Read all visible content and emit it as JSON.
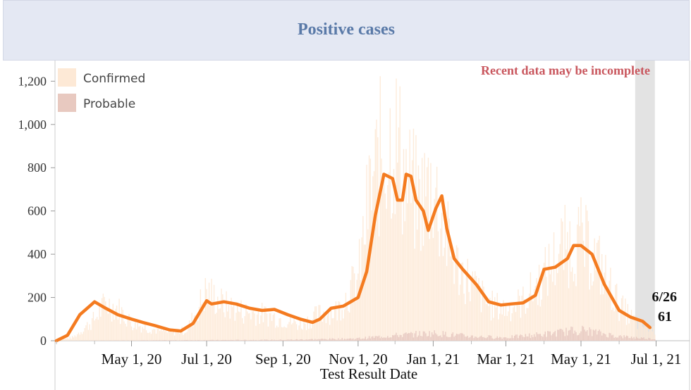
{
  "chart_data": {
    "type": "bar",
    "title": "Positive cases",
    "xlabel": "Test Result Date",
    "ylabel": "",
    "ylim": [
      0,
      1250
    ],
    "y_ticks": [
      "1,200",
      "1,000",
      "800",
      "600",
      "400",
      "200",
      "0"
    ],
    "y_tick_values": [
      1200,
      1000,
      800,
      600,
      400,
      200,
      0
    ],
    "x_tick_labels": [
      "May 1, 20",
      "Jul 1, 20",
      "Sep 1, 20",
      "Nov 1, 20",
      "Jan 1, 21",
      "Mar 1, 21",
      "May 1, 21",
      "Jul 1, 21"
    ],
    "x_tick_dates": [
      "2020-05-01",
      "2020-07-01",
      "2020-09-01",
      "2020-11-01",
      "2021-01-01",
      "2021-03-01",
      "2021-05-01",
      "2021-07-01"
    ],
    "x_range": [
      "2020-03-01",
      "2021-07-03"
    ],
    "legend": {
      "placement": "top-left",
      "entries": [
        "Confirmed",
        "Probable"
      ]
    },
    "note": "Recent data may be incomplete",
    "incomplete_from": "2021-06-14",
    "incomplete_to": "2021-06-30",
    "callout": {
      "date_label": "6/26",
      "value_label": "61"
    },
    "colors": {
      "confirmed": "#fde9d6",
      "probable": "#e8c9c0",
      "average": "#f47b20",
      "incomplete_band": "#e3e3e3"
    },
    "series": [
      {
        "name": "Confirmed",
        "kind": "bar",
        "x": [
          "2020-03-01",
          "2020-03-15",
          "2020-04-01",
          "2020-04-10",
          "2020-04-20",
          "2020-05-01",
          "2020-05-15",
          "2020-06-01",
          "2020-06-15",
          "2020-07-01",
          "2020-07-15",
          "2020-08-01",
          "2020-08-15",
          "2020-09-01",
          "2020-09-15",
          "2020-10-01",
          "2020-10-15",
          "2020-11-01",
          "2020-11-10",
          "2020-11-20",
          "2020-12-01",
          "2020-12-10",
          "2020-12-20",
          "2021-01-01",
          "2021-01-10",
          "2021-01-20",
          "2021-02-01",
          "2021-02-15",
          "2021-03-01",
          "2021-03-15",
          "2021-04-01",
          "2021-04-15",
          "2021-05-01",
          "2021-05-15",
          "2021-06-01",
          "2021-06-15",
          "2021-06-30"
        ],
        "values": [
          0,
          20,
          120,
          210,
          180,
          100,
          70,
          45,
          60,
          280,
          200,
          160,
          150,
          120,
          90,
          150,
          170,
          350,
          800,
          1050,
          1150,
          900,
          780,
          880,
          600,
          420,
          320,
          200,
          180,
          220,
          360,
          520,
          560,
          440,
          200,
          100,
          60
        ]
      },
      {
        "name": "Probable",
        "kind": "bar",
        "x": [
          "2020-03-01",
          "2020-06-01",
          "2020-09-01",
          "2020-11-01",
          "2020-12-01",
          "2021-01-01",
          "2021-02-01",
          "2021-03-01",
          "2021-04-01",
          "2021-05-01",
          "2021-06-01",
          "2021-06-30"
        ],
        "values": [
          0,
          2,
          4,
          10,
          25,
          35,
          20,
          15,
          30,
          50,
          20,
          8
        ]
      },
      {
        "name": "",
        "kind": "line",
        "x": [
          "2020-03-01",
          "2020-03-10",
          "2020-03-20",
          "2020-04-01",
          "2020-04-10",
          "2020-04-20",
          "2020-05-01",
          "2020-05-10",
          "2020-05-20",
          "2020-06-01",
          "2020-06-10",
          "2020-06-20",
          "2020-07-01",
          "2020-07-05",
          "2020-07-15",
          "2020-07-25",
          "2020-08-05",
          "2020-08-15",
          "2020-08-25",
          "2020-09-05",
          "2020-09-15",
          "2020-09-25",
          "2020-10-01",
          "2020-10-10",
          "2020-10-20",
          "2020-11-01",
          "2020-11-08",
          "2020-11-15",
          "2020-11-22",
          "2020-11-29",
          "2020-12-03",
          "2020-12-07",
          "2020-12-10",
          "2020-12-14",
          "2020-12-18",
          "2020-12-24",
          "2020-12-28",
          "2021-01-03",
          "2021-01-08",
          "2021-01-12",
          "2021-01-18",
          "2021-01-25",
          "2021-02-05",
          "2021-02-15",
          "2021-02-25",
          "2021-03-05",
          "2021-03-15",
          "2021-03-25",
          "2021-04-01",
          "2021-04-10",
          "2021-04-20",
          "2021-04-25",
          "2021-05-01",
          "2021-05-10",
          "2021-05-20",
          "2021-06-01",
          "2021-06-10",
          "2021-06-20",
          "2021-06-26"
        ],
        "values": [
          0,
          25,
          120,
          180,
          150,
          120,
          100,
          85,
          70,
          50,
          45,
          80,
          185,
          170,
          180,
          170,
          150,
          140,
          145,
          120,
          100,
          85,
          100,
          150,
          160,
          200,
          320,
          580,
          770,
          750,
          650,
          650,
          770,
          760,
          650,
          600,
          510,
          610,
          670,
          520,
          380,
          330,
          260,
          180,
          165,
          170,
          175,
          210,
          330,
          340,
          380,
          440,
          440,
          400,
          260,
          140,
          110,
          90,
          61
        ]
      }
    ]
  }
}
